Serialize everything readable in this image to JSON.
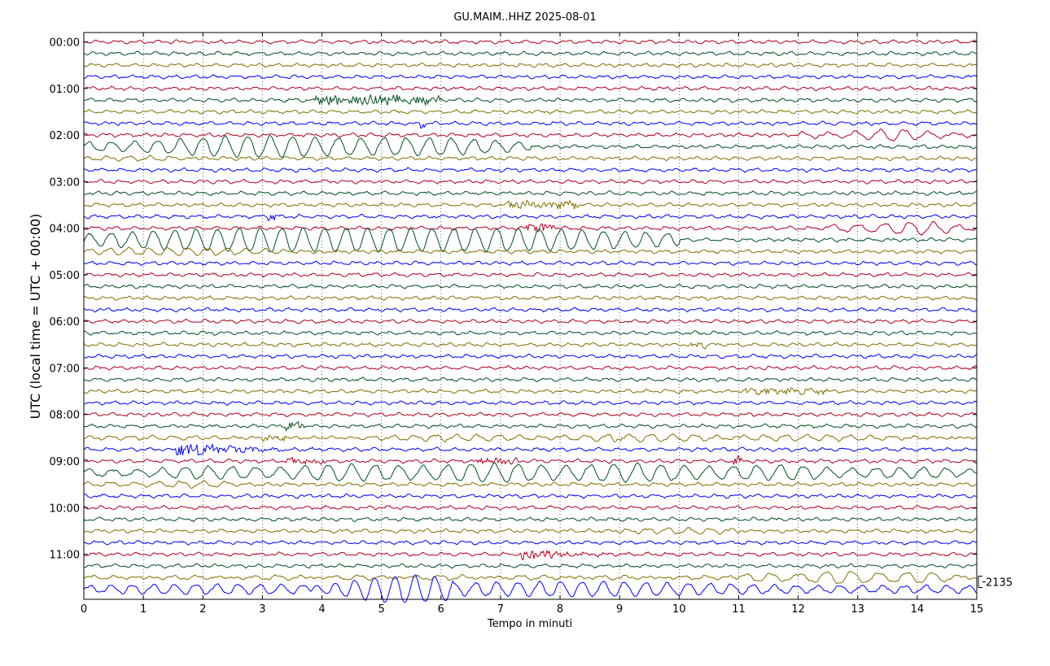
{
  "chart_data": {
    "type": "line",
    "title": "GU.MAIM..HHZ 2025-08-01",
    "xlabel": "Tempo in minuti",
    "ylabel": "UTC (local time = UTC + 00:00)",
    "xlim": [
      0,
      15
    ],
    "x_ticks": [
      "0",
      "1",
      "2",
      "3",
      "4",
      "5",
      "6",
      "7",
      "8",
      "9",
      "10",
      "11",
      "12",
      "13",
      "14",
      "15"
    ],
    "y_ticks": [
      "00:00",
      "01:00",
      "02:00",
      "03:00",
      "04:00",
      "05:00",
      "06:00",
      "07:00",
      "08:00",
      "09:00",
      "10:00",
      "11:00"
    ],
    "trace_colors": [
      "#b00020",
      "#00501e",
      "#807000",
      "#0000ff"
    ],
    "trace_count": 48,
    "minutes_per_trace": 15,
    "grid": "vertical dotted",
    "scale_label": "2135",
    "events": [
      {
        "trace": 6,
        "start": 3.85,
        "end": 6.0,
        "amp": 0.5,
        "period": 0.05,
        "kind": "noise"
      },
      {
        "trace": 8,
        "start": 5.65,
        "end": 5.75,
        "amp": 0.4,
        "period": 0.05,
        "kind": "noise"
      },
      {
        "trace": 9,
        "start": 12.0,
        "end": 15.0,
        "amp": 0.5,
        "period": 0.42,
        "kind": "wave"
      },
      {
        "trace": 10,
        "start": 0.0,
        "end": 7.5,
        "amp": 1.1,
        "period": 0.38,
        "kind": "wave"
      },
      {
        "trace": 11,
        "start": 0.0,
        "end": 2.0,
        "amp": 0.3,
        "period": 0.35,
        "kind": "wave"
      },
      {
        "trace": 15,
        "start": 7.1,
        "end": 8.3,
        "amp": 0.35,
        "period": 0.05,
        "kind": "noise"
      },
      {
        "trace": 16,
        "start": 3.1,
        "end": 3.25,
        "amp": 0.5,
        "period": 0.05,
        "kind": "noise"
      },
      {
        "trace": 17,
        "start": 7.4,
        "end": 7.9,
        "amp": 0.5,
        "period": 0.04,
        "kind": "noise"
      },
      {
        "trace": 17,
        "start": 12.5,
        "end": 15.0,
        "amp": 0.6,
        "period": 0.42,
        "kind": "wave"
      },
      {
        "trace": 18,
        "start": 0.0,
        "end": 10.0,
        "amp": 1.4,
        "period": 0.36,
        "kind": "wave"
      },
      {
        "trace": 19,
        "start": 0.0,
        "end": 4.0,
        "amp": 0.45,
        "period": 0.33,
        "kind": "wave"
      },
      {
        "trace": 27,
        "start": 10.2,
        "end": 10.45,
        "amp": 0.3,
        "period": 0.05,
        "kind": "noise"
      },
      {
        "trace": 31,
        "start": 11.0,
        "end": 12.5,
        "amp": 0.25,
        "period": 0.05,
        "kind": "noise"
      },
      {
        "trace": 34,
        "start": 3.4,
        "end": 3.7,
        "amp": 0.4,
        "period": 0.04,
        "kind": "noise"
      },
      {
        "trace": 35,
        "start": 8.0,
        "end": 11.0,
        "amp": 0.5,
        "period": 0.36,
        "kind": "wave"
      },
      {
        "trace": 35,
        "start": 4.0,
        "end": 8.0,
        "amp": 0.2,
        "period": 0.36,
        "kind": "wave"
      },
      {
        "trace": 35,
        "start": 3.0,
        "end": 3.4,
        "amp": 0.25,
        "period": 0.05,
        "kind": "noise"
      },
      {
        "trace": 35,
        "start": 11.0,
        "end": 15.0,
        "amp": 0.25,
        "period": 0.36,
        "kind": "wave"
      },
      {
        "trace": 35,
        "start": 0.0,
        "end": 3.0,
        "amp": 0.1,
        "period": 0.36,
        "kind": "wave"
      },
      {
        "trace": 35,
        "start": 8.8,
        "end": 9.1,
        "amp": 0.2,
        "period": 0.05,
        "kind": "noise"
      },
      {
        "trace": 35,
        "start": 10.5,
        "end": 10.6,
        "amp": 0.1,
        "period": 0.05,
        "kind": "noise"
      },
      {
        "trace": 35,
        "start": 14.5,
        "end": 14.6,
        "amp": 0.1,
        "period": 0.05,
        "kind": "noise"
      },
      {
        "trace": 35,
        "start": 12.0,
        "end": 12.1,
        "amp": 0.1,
        "period": 0.05,
        "kind": "noise"
      },
      {
        "trace": 35,
        "start": 1.5,
        "end": 1.6,
        "amp": 0.1,
        "period": 0.05,
        "kind": "noise"
      },
      {
        "trace": 35,
        "start": 6.0,
        "end": 6.1,
        "amp": 0.1,
        "period": 0.05,
        "kind": "noise"
      },
      {
        "trace": 36,
        "start": 1.55,
        "end": 5.0,
        "amp": 0.9,
        "period": 0.05,
        "kind": "quake"
      },
      {
        "trace": 37,
        "start": 3.4,
        "end": 4.1,
        "amp": 0.3,
        "period": 0.04,
        "kind": "noise"
      },
      {
        "trace": 37,
        "start": 6.6,
        "end": 7.3,
        "amp": 0.3,
        "period": 0.04,
        "kind": "noise"
      },
      {
        "trace": 37,
        "start": 10.9,
        "end": 11.05,
        "amp": 0.4,
        "period": 0.04,
        "kind": "noise"
      },
      {
        "trace": 38,
        "start": 0.0,
        "end": 15.0,
        "amp": 0.9,
        "period": 0.4,
        "kind": "wave"
      },
      {
        "trace": 39,
        "start": 0.0,
        "end": 2.5,
        "amp": 0.35,
        "period": 0.38,
        "kind": "wave"
      },
      {
        "trace": 43,
        "start": 9.0,
        "end": 11.0,
        "amp": 0.25,
        "period": 0.35,
        "kind": "wave"
      },
      {
        "trace": 45,
        "start": 7.35,
        "end": 9.8,
        "amp": 0.8,
        "period": 0.04,
        "kind": "quake"
      },
      {
        "trace": 47,
        "start": 11.0,
        "end": 15.0,
        "amp": 0.6,
        "period": 0.45,
        "kind": "wave"
      },
      {
        "trace": 47,
        "start": 0.0,
        "end": 11.0,
        "amp": 0.15,
        "period": 0.45,
        "kind": "wave"
      },
      {
        "trace": 48,
        "start": 0.0,
        "end": 15.0,
        "amp": 0.7,
        "period": 0.36,
        "kind": "wave"
      },
      {
        "trace": 48,
        "start": 3.8,
        "end": 6.2,
        "amp": 1.6,
        "period": 0.34,
        "kind": "wave"
      }
    ]
  }
}
